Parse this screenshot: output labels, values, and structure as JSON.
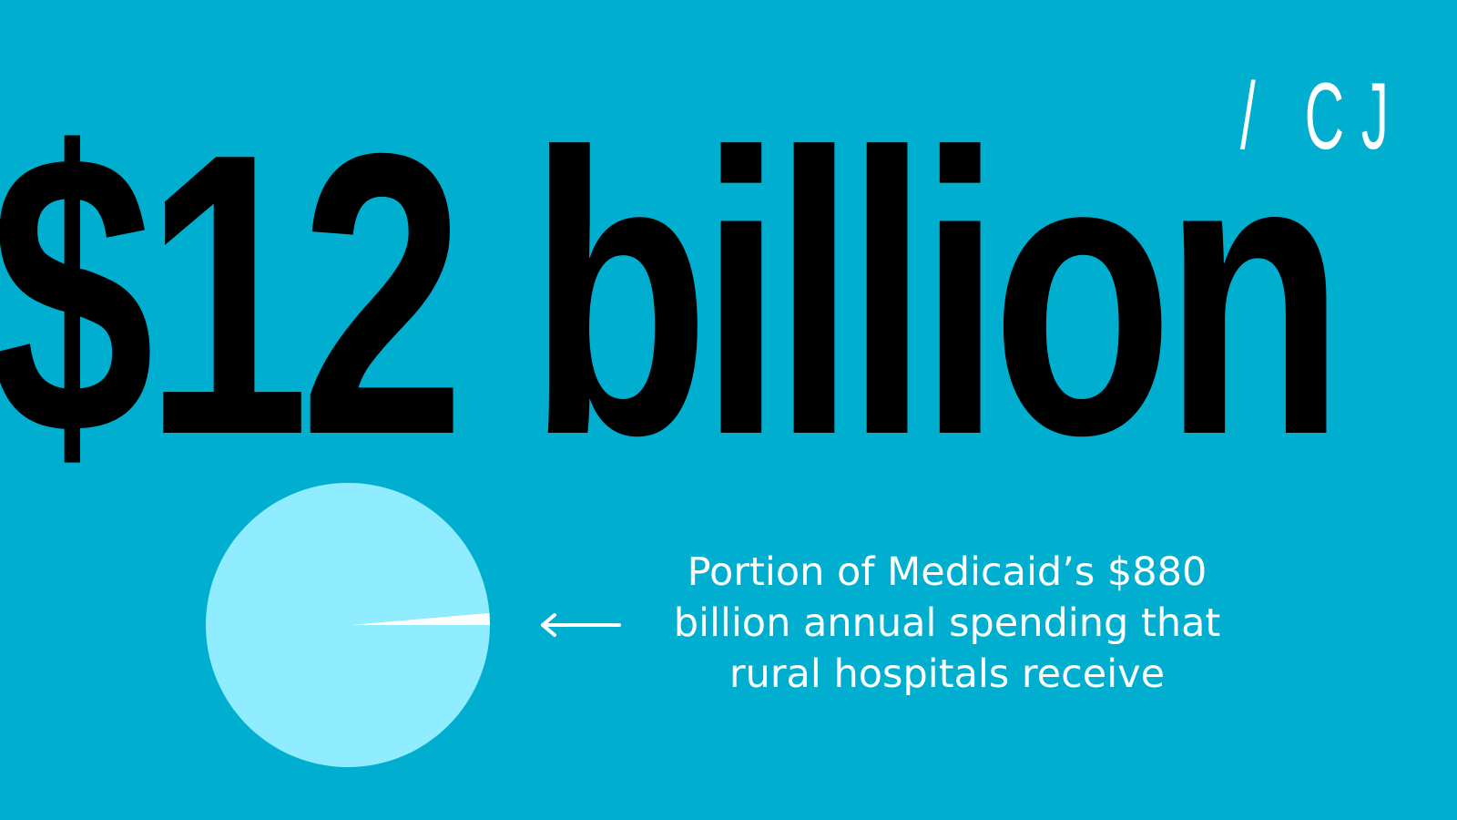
{
  "colors": {
    "background": "#00AECF",
    "headline_text": "#000000",
    "logo_text": "#FFFFFF",
    "caption_text": "#FFFFFF",
    "pie_main": "#90ECFF",
    "pie_highlight": "#FFFFFF",
    "arrow": "#FFFFFF"
  },
  "headline": "$12 billion",
  "logo": "/ CJ",
  "caption": {
    "line1": "Portion of Medicaid’s $880",
    "line2": "billion annual spending that",
    "line3": "rural hospitals receive"
  },
  "arrow_icon": "left-arrow-icon",
  "chart_data": {
    "type": "pie",
    "title": "",
    "slices": [
      {
        "label": "rural hospitals receive",
        "value": 12,
        "unit": "billion",
        "color": "#FFFFFF"
      },
      {
        "label": "",
        "value": 868,
        "unit": "billion",
        "color": "#90ECFF"
      }
    ],
    "total": 880,
    "legend": "none"
  }
}
